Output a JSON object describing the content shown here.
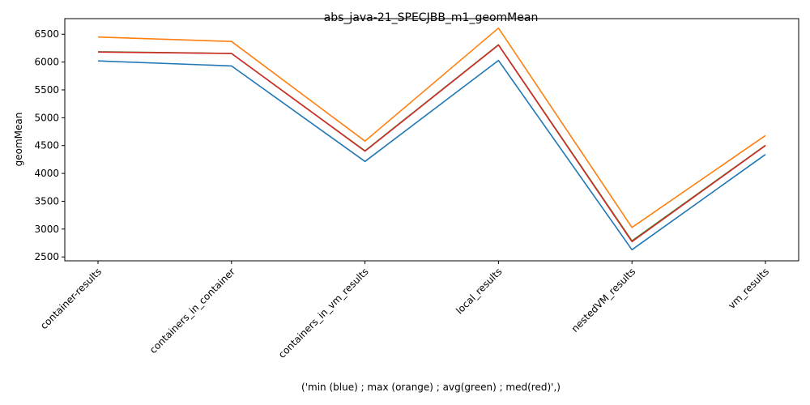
{
  "chart_data": {
    "type": "line",
    "title": "abs_java-21_SPECJBB_m1_geomMean",
    "xlabel": "('min (blue) ; max (orange) ; avg(green) ; med(red)',)",
    "ylabel": "geomMean",
    "categories": [
      "container-results",
      "containers_in_container",
      "containers_in_vm_results",
      "local_results",
      "nestedVM_results",
      "vm_results"
    ],
    "ylim": [
      2430,
      6780
    ],
    "yticks": [
      2500,
      3000,
      3500,
      4000,
      4500,
      5000,
      5500,
      6000,
      6500
    ],
    "grid": false,
    "series": [
      {
        "key": "min",
        "color": "#1f77b4",
        "values": [
          6020,
          5930,
          4215,
          6030,
          2630,
          4340
        ]
      },
      {
        "key": "max",
        "color": "#ff7f0e",
        "values": [
          6450,
          6370,
          4580,
          6610,
          3030,
          4680
        ]
      },
      {
        "key": "avg",
        "color": "#2ca02c",
        "values": [
          6185,
          6155,
          4405,
          6310,
          2790,
          4505
        ]
      },
      {
        "key": "med",
        "color": "#d62728",
        "values": [
          6180,
          6155,
          4400,
          6305,
          2775,
          4500
        ]
      }
    ]
  }
}
